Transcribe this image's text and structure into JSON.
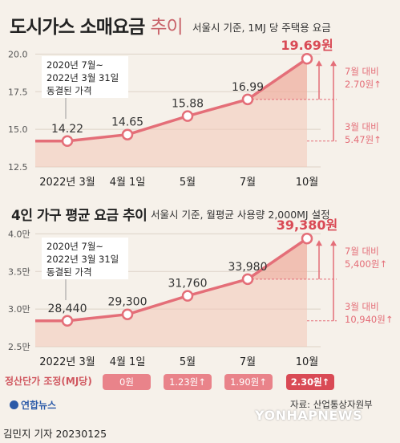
{
  "chart1": {
    "title_bold": "도시가스 소매요금",
    "title_light": "추이",
    "subtitle": "서울시 기준, 1MJ 당 주택용 요금",
    "note_lines": [
      "2020년 7월~",
      "2022년 3월 31일",
      "동결된 가격"
    ],
    "anno_july_lines": [
      "7월 대비",
      "2.70원↑"
    ],
    "anno_march_lines": [
      "3월 대비",
      "5.47원↑"
    ]
  },
  "chart2": {
    "title": "4인 가구 평균 요금 추이",
    "subtitle": "서울시 기준, 월평균 사용량 2,000MJ 설정",
    "note_lines": [
      "2020년 7월~",
      "2022년 3월 31일",
      "동결된 가격"
    ],
    "anno_july_lines": [
      "7월 대비",
      "5,400원↑"
    ],
    "anno_march_lines": [
      "3월 대비",
      "10,940원↑"
    ]
  },
  "adjust_row": {
    "label": "정산단가 조정(MJ당)",
    "values": [
      "0원",
      "1.23원↑",
      "1.90원↑",
      "2.30원↑"
    ]
  },
  "footer": {
    "brand": "연합뉴스",
    "source": "자료: 산업통상자원부",
    "credit": "김민지 기자  20230125",
    "watermark": "YONHAPNEWS"
  },
  "colors": {
    "line": "#e46e78",
    "marker_fill": "#ffffff",
    "accent": "#d94a55",
    "area": "#f2c6b6",
    "grid": "#ddd3c7"
  },
  "chart_data": [
    {
      "type": "line",
      "title": "도시가스 소매요금 추이",
      "subtitle": "서울시 기준, 1MJ 당 주택용 요금",
      "categories": [
        "2022년 3월",
        "4월 1일",
        "5월",
        "7월",
        "10월"
      ],
      "values": [
        14.22,
        14.65,
        15.88,
        16.99,
        19.69
      ],
      "data_labels": [
        "14.22",
        "14.65",
        "15.88",
        "16.99",
        "19.69원"
      ],
      "yticks": [
        "12.5",
        "15.0",
        "17.5",
        "20.0"
      ],
      "ytick_values": [
        12.5,
        15.0,
        17.5,
        20.0
      ],
      "ylim": [
        12.5,
        20.5
      ]
    },
    {
      "type": "line",
      "title": "4인 가구 평균 요금 추이",
      "subtitle": "서울시 기준, 월평균 사용량 2,000MJ 설정",
      "categories": [
        "2022년 3월",
        "4월 1일",
        "5월",
        "7월",
        "10월"
      ],
      "values": [
        28440,
        29300,
        31760,
        33980,
        39380
      ],
      "data_labels": [
        "28,440",
        "29,300",
        "31,760",
        "33,980",
        "39,380원"
      ],
      "yticks": [
        "2.5만",
        "3.0만",
        "3.5만",
        "4.0만"
      ],
      "ytick_values": [
        25000,
        30000,
        35000,
        40000
      ],
      "ylim": [
        25000,
        41000
      ]
    }
  ]
}
